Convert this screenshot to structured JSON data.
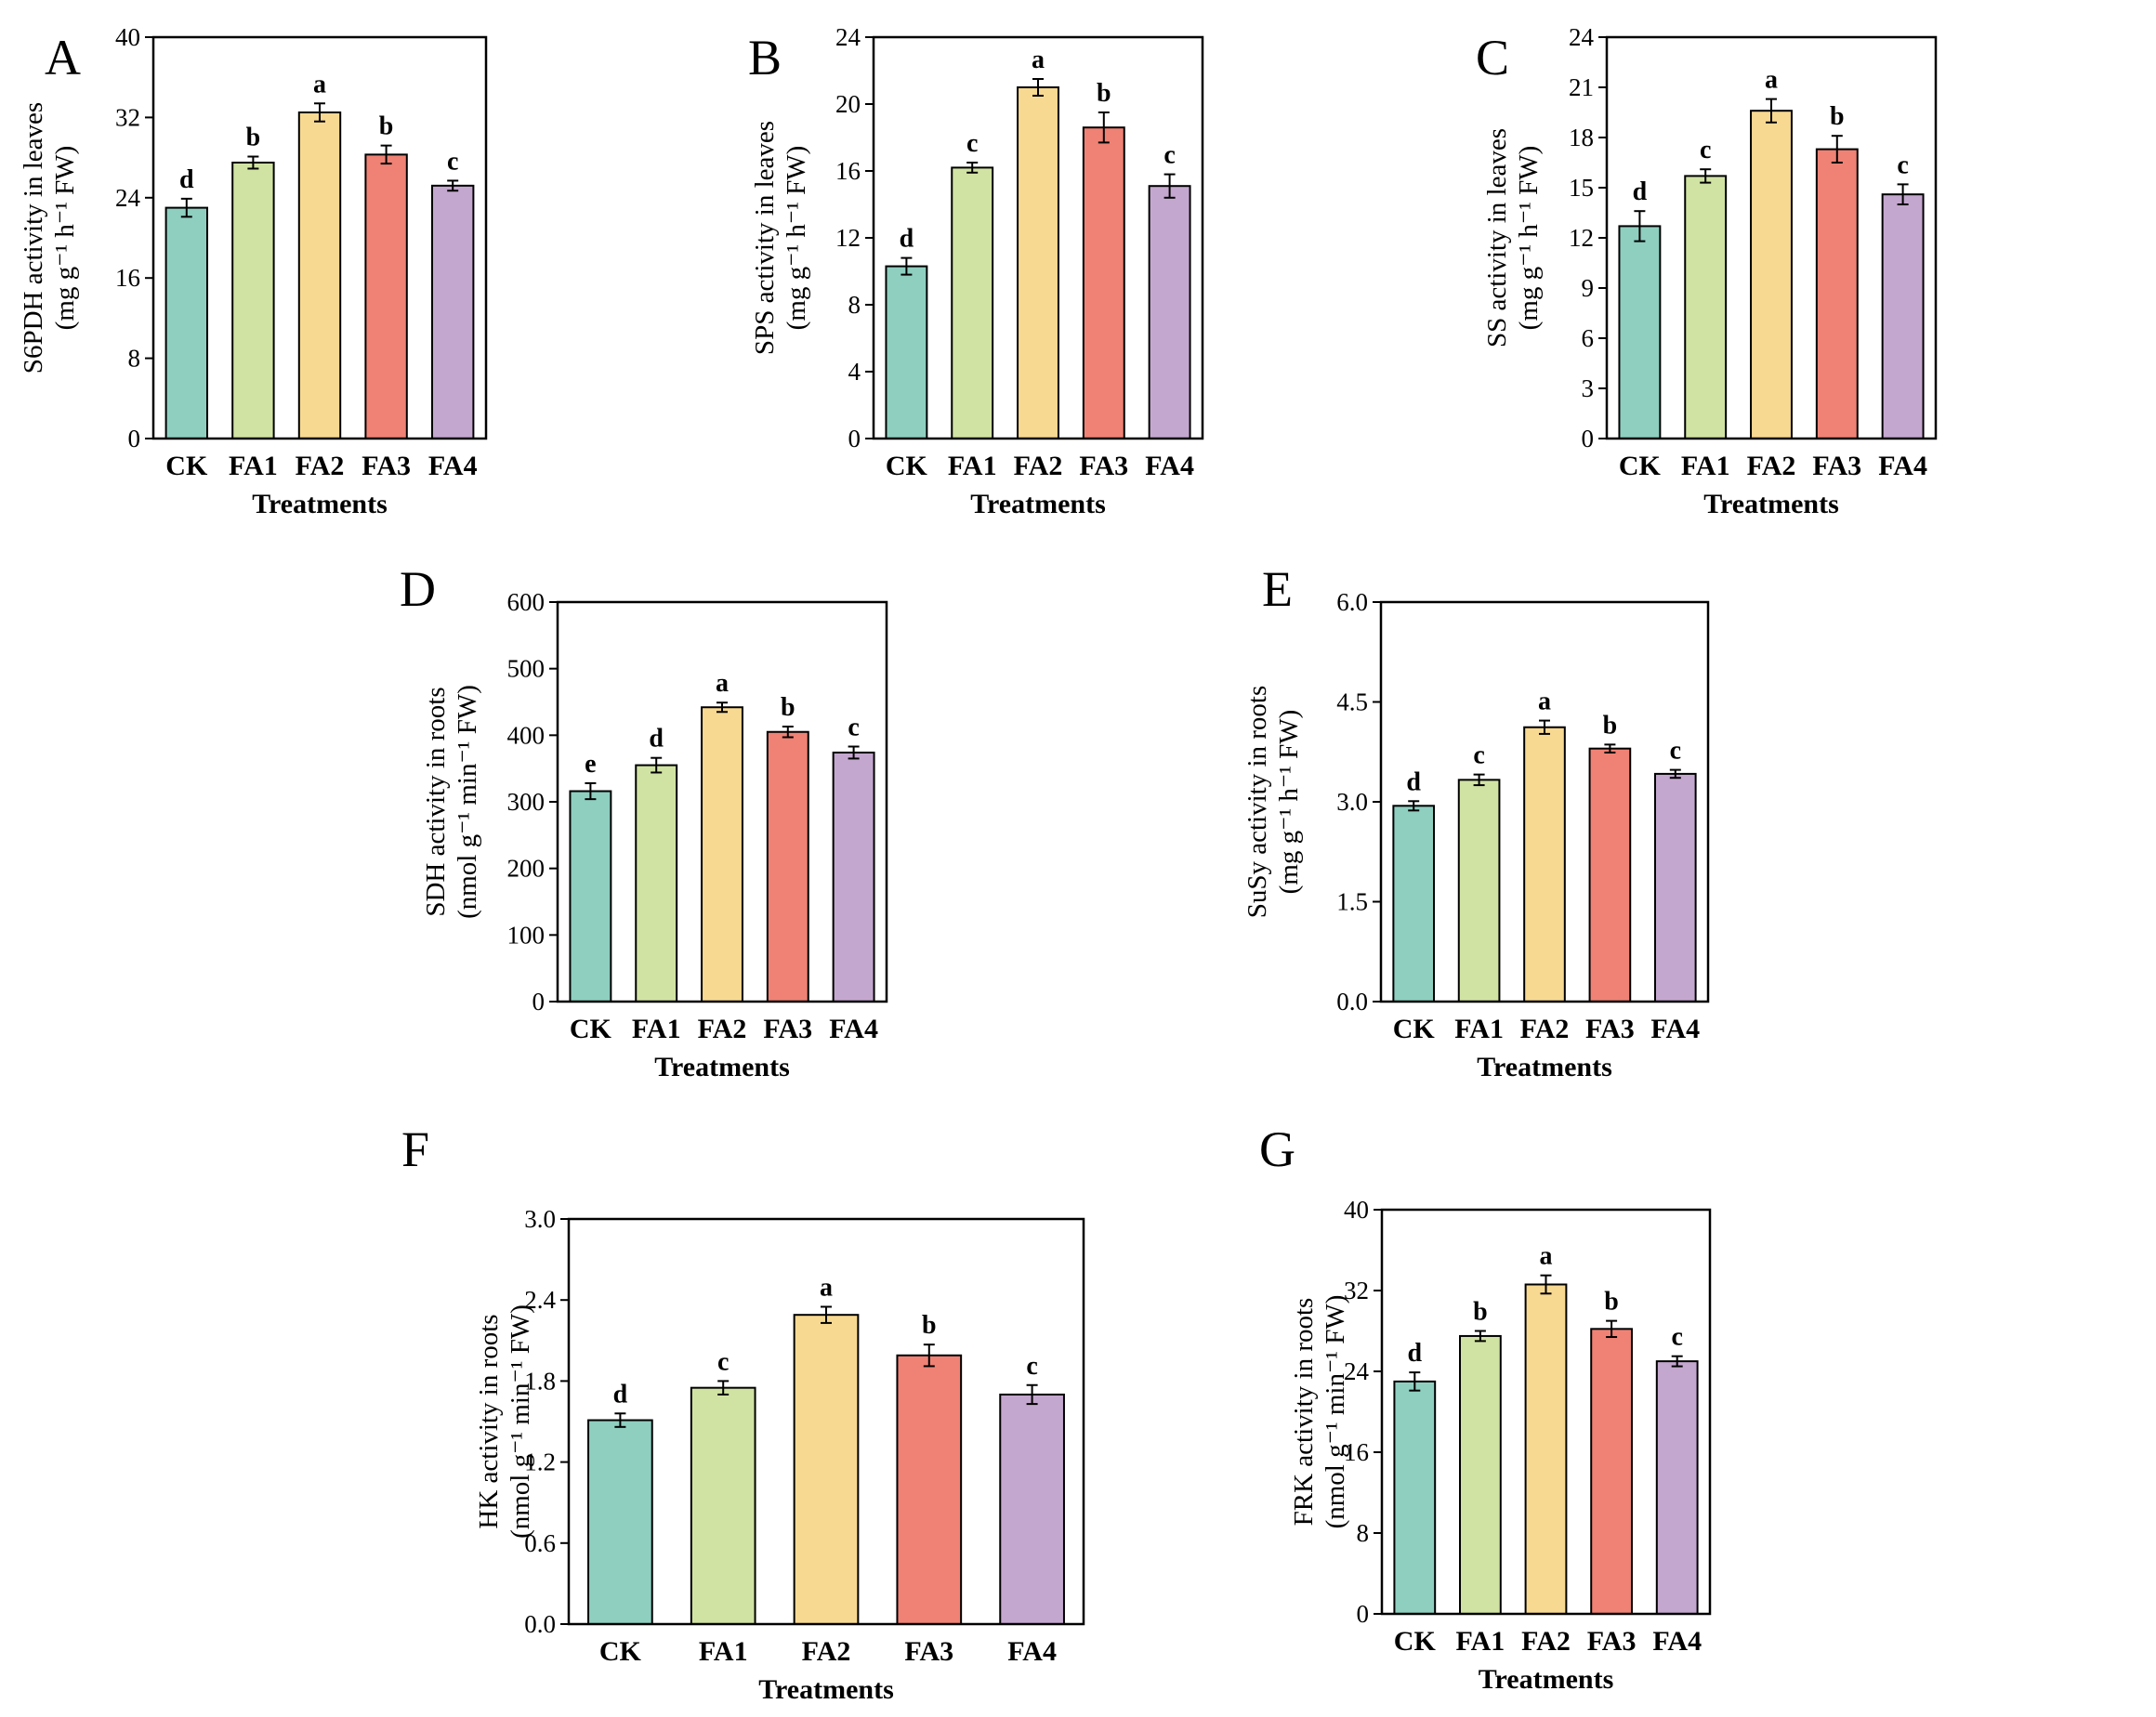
{
  "colors": [
    "#8ecfc0",
    "#d1e3a3",
    "#f8d992",
    "#ef8275",
    "#c4a7cf"
  ],
  "chart_data": [
    {
      "panel": "A",
      "type": "bar",
      "categories": [
        "CK",
        "FA1",
        "FA2",
        "FA3",
        "FA4"
      ],
      "values": [
        23.0,
        27.5,
        32.5,
        28.3,
        25.2
      ],
      "errors": [
        0.9,
        0.6,
        0.9,
        0.9,
        0.5
      ],
      "sig": [
        "d",
        "b",
        "a",
        "b",
        "c"
      ],
      "xlabel": "Treatments",
      "ylabel_line1": "S6PDH activity in leaves",
      "ylabel_line2": "(mg g⁻¹ h⁻¹ FW)",
      "ylim": [
        0,
        40
      ],
      "ticks": [
        0,
        8,
        16,
        24,
        32,
        40
      ],
      "tick_labels": [
        "0",
        "8",
        "16",
        "24",
        "32",
        "40"
      ]
    },
    {
      "panel": "B",
      "type": "bar",
      "categories": [
        "CK",
        "FA1",
        "FA2",
        "FA3",
        "FA4"
      ],
      "values": [
        10.3,
        16.2,
        21.0,
        18.6,
        15.1
      ],
      "errors": [
        0.5,
        0.3,
        0.5,
        0.9,
        0.7
      ],
      "sig": [
        "d",
        "c",
        "a",
        "b",
        "c"
      ],
      "xlabel": "Treatments",
      "ylabel_line1": "SPS activity in leaves",
      "ylabel_line2": "(mg g⁻¹ h⁻¹ FW)",
      "ylim": [
        0,
        24
      ],
      "ticks": [
        0,
        4,
        8,
        12,
        16,
        20,
        24
      ],
      "tick_labels": [
        "0",
        "4",
        "8",
        "12",
        "16",
        "20",
        "24"
      ]
    },
    {
      "panel": "C",
      "type": "bar",
      "categories": [
        "CK",
        "FA1",
        "FA2",
        "FA3",
        "FA4"
      ],
      "values": [
        12.7,
        15.7,
        19.6,
        17.3,
        14.6
      ],
      "errors": [
        0.9,
        0.4,
        0.7,
        0.8,
        0.6
      ],
      "sig": [
        "d",
        "c",
        "a",
        "b",
        "c"
      ],
      "xlabel": "Treatments",
      "ylabel_line1": "SS activity in leaves",
      "ylabel_line2": "(mg g⁻¹ h⁻¹ FW)",
      "ylim": [
        0,
        24
      ],
      "ticks": [
        0,
        3,
        6,
        9,
        12,
        15,
        18,
        21,
        24
      ],
      "tick_labels": [
        "0",
        "3",
        "6",
        "9",
        "12",
        "15",
        "18",
        "21",
        "24"
      ]
    },
    {
      "panel": "D",
      "type": "bar",
      "categories": [
        "CK",
        "FA1",
        "FA2",
        "FA3",
        "FA4"
      ],
      "values": [
        316,
        355,
        442,
        405,
        374
      ],
      "errors": [
        12,
        11,
        7,
        8,
        9
      ],
      "sig": [
        "e",
        "d",
        "a",
        "b",
        "c"
      ],
      "xlabel": "Treatments",
      "ylabel_line1": "SDH activity in roots",
      "ylabel_line2": "(nmol g⁻¹ min⁻¹ FW)",
      "ylim": [
        0,
        600
      ],
      "ticks": [
        0,
        100,
        200,
        300,
        400,
        500,
        600
      ],
      "tick_labels": [
        "0",
        "100",
        "200",
        "300",
        "400",
        "500",
        "600"
      ]
    },
    {
      "panel": "E",
      "type": "bar",
      "categories": [
        "CK",
        "FA1",
        "FA2",
        "FA3",
        "FA4"
      ],
      "values": [
        2.94,
        3.33,
        4.12,
        3.8,
        3.42
      ],
      "errors": [
        0.07,
        0.08,
        0.1,
        0.06,
        0.06
      ],
      "sig": [
        "d",
        "c",
        "a",
        "b",
        "c"
      ],
      "xlabel": "Treatments",
      "ylabel_line1": "SuSy activity in roots",
      "ylabel_line2": "(mg g⁻¹ h⁻¹ FW)",
      "ylim": [
        0,
        6
      ],
      "ticks": [
        0,
        1.5,
        3,
        4.5,
        6
      ],
      "tick_labels": [
        "0.0",
        "1.5",
        "3.0",
        "4.5",
        "6.0"
      ]
    },
    {
      "panel": "F",
      "type": "bar",
      "categories": [
        "CK",
        "FA1",
        "FA2",
        "FA3",
        "FA4"
      ],
      "values": [
        1.51,
        1.75,
        2.29,
        1.99,
        1.7
      ],
      "errors": [
        0.05,
        0.05,
        0.06,
        0.08,
        0.07
      ],
      "sig": [
        "d",
        "c",
        "a",
        "b",
        "c"
      ],
      "xlabel": "Treatments",
      "ylabel_line1": "HK activity in roots",
      "ylabel_line2": "(nmol g⁻¹ min⁻¹ FW)",
      "ylim": [
        0,
        3
      ],
      "ticks": [
        0,
        0.6,
        1.2,
        1.8,
        2.4,
        3.0
      ],
      "tick_labels": [
        "0.0",
        "0.6",
        "1.2",
        "1.8",
        "2.4",
        "3.0"
      ]
    },
    {
      "panel": "G",
      "type": "bar",
      "categories": [
        "CK",
        "FA1",
        "FA2",
        "FA3",
        "FA4"
      ],
      "values": [
        23.0,
        27.5,
        32.6,
        28.2,
        25.0
      ],
      "errors": [
        0.9,
        0.5,
        0.9,
        0.8,
        0.5
      ],
      "sig": [
        "d",
        "b",
        "a",
        "b",
        "c"
      ],
      "xlabel": "Treatments",
      "ylabel_line1": "FRK activity in roots",
      "ylabel_line2": "(nmol g⁻¹ min⁻¹ FW)",
      "ylim": [
        0,
        40
      ],
      "ticks": [
        0,
        8,
        16,
        24,
        32,
        40
      ],
      "tick_labels": [
        "0",
        "8",
        "16",
        "24",
        "32",
        "40"
      ]
    }
  ]
}
